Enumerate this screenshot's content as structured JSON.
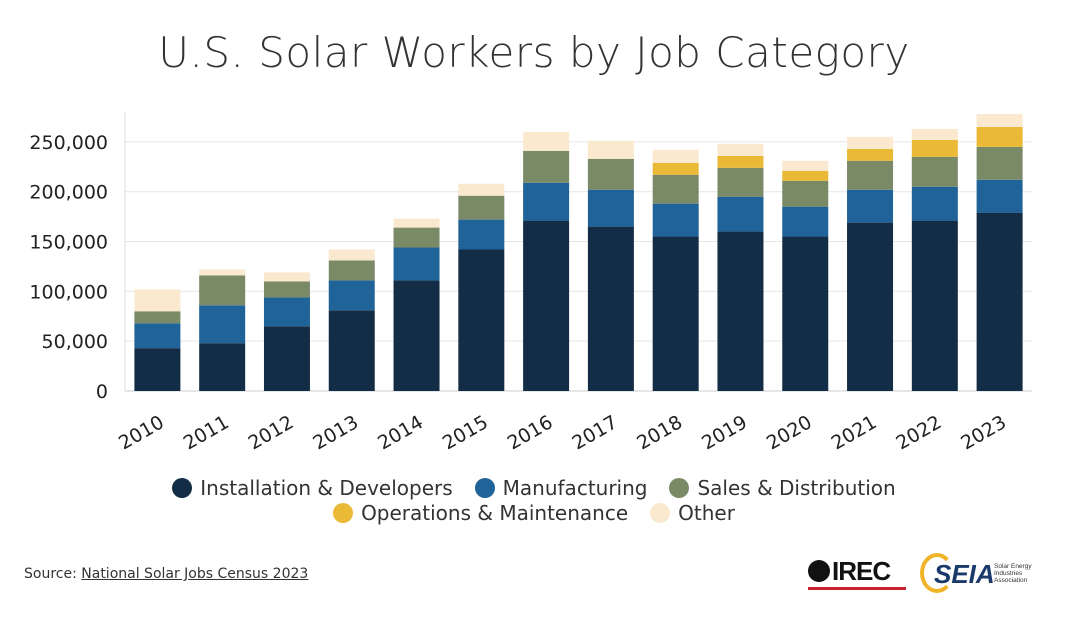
{
  "chart_data": {
    "type": "bar",
    "stacked": true,
    "title": "U.S. Solar Workers by Job Category",
    "categories": [
      "2010",
      "2011",
      "2012",
      "2013",
      "2014",
      "2015",
      "2016",
      "2017",
      "2018",
      "2019",
      "2020",
      "2021",
      "2022",
      "2023"
    ],
    "series": [
      {
        "name": "Installation & Developers",
        "color": "#132d46",
        "values": [
          43000,
          48000,
          65000,
          81000,
          111000,
          142000,
          171000,
          165000,
          155000,
          160000,
          155000,
          169000,
          171000,
          179000
        ]
      },
      {
        "name": "Manufacturing",
        "color": "#1f6399",
        "values": [
          25000,
          38000,
          29000,
          30000,
          33000,
          30000,
          38000,
          37000,
          33000,
          35000,
          30000,
          33000,
          34000,
          33000
        ]
      },
      {
        "name": "Sales & Distribution",
        "color": "#7a8a67",
        "values": [
          12000,
          30000,
          16000,
          20000,
          20000,
          24000,
          32000,
          31000,
          29000,
          29000,
          26000,
          29000,
          30000,
          33000
        ]
      },
      {
        "name": "Operations & Maintenance",
        "color": "#eab936",
        "values": [
          0,
          0,
          0,
          0,
          0,
          0,
          0,
          0,
          12000,
          12000,
          10000,
          12000,
          17000,
          20000
        ]
      },
      {
        "name": "Other",
        "color": "#fae9cf",
        "values": [
          22000,
          6000,
          9000,
          11000,
          9000,
          12000,
          19000,
          18000,
          13000,
          12000,
          10000,
          12000,
          11000,
          13000
        ]
      }
    ],
    "yticks": [
      "0",
      "50,000",
      "100,000",
      "150,000",
      "200,000",
      "250,000"
    ],
    "ytick_values": [
      0,
      50000,
      100000,
      150000,
      200000,
      250000
    ],
    "ylim": [
      0,
      280000
    ],
    "xlabel": "",
    "ylabel": "",
    "grid": true,
    "legend": "bottom-center"
  },
  "source": {
    "label": "Source: ",
    "link_text": "National Solar Jobs Census 2023"
  },
  "logos": {
    "irec": "IREC",
    "seia": "SEIA",
    "seia_subtitle": "Solar Energy Industries Association"
  }
}
